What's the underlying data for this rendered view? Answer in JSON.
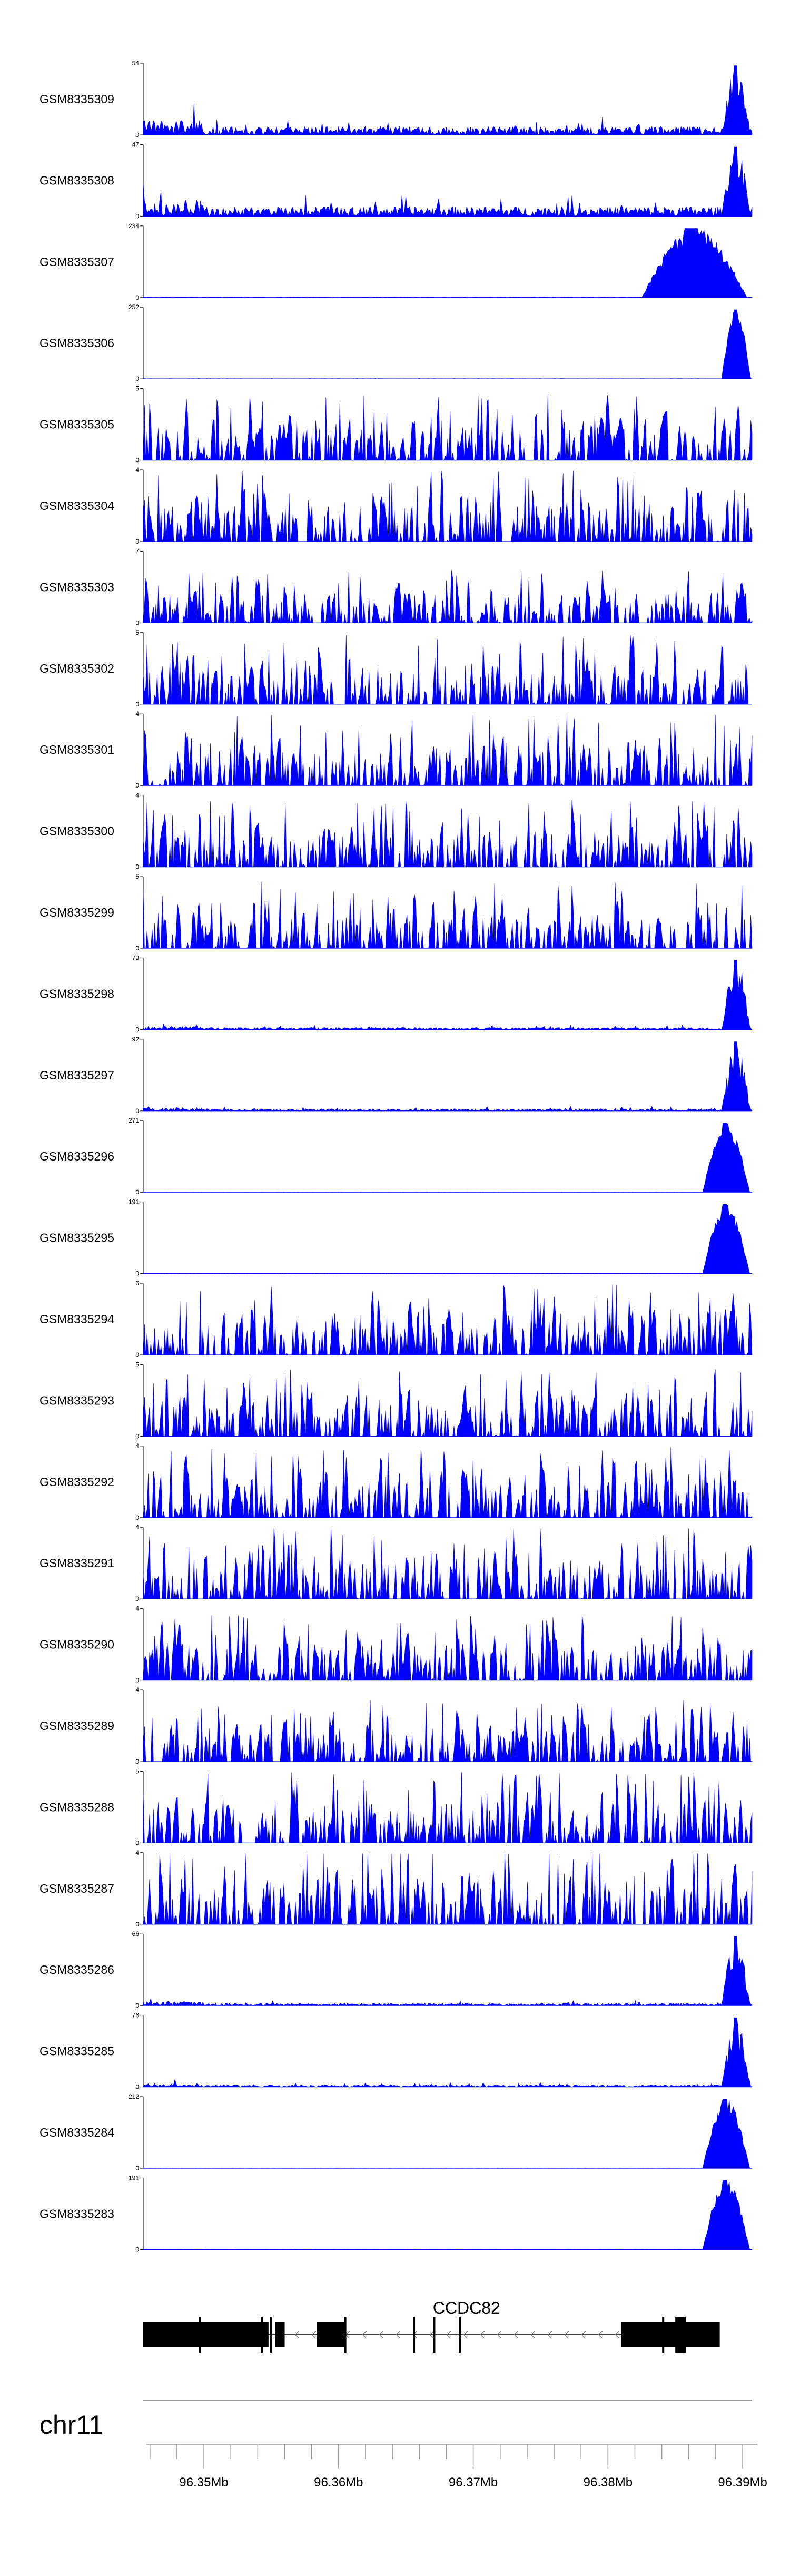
{
  "chart_data": {
    "type": "area",
    "chromosome": "chr11",
    "xlim": [
      96.3455,
      96.3907
    ],
    "color": "#0000ff",
    "tracks": [
      {
        "name": "GSM8335309",
        "ymax": "54",
        "ymin": "0",
        "max": 54,
        "profile": "noise",
        "level": 0.12,
        "peak": [
          0.95,
          1.0,
          0.5
        ],
        "seed": 1
      },
      {
        "name": "GSM8335308",
        "ymax": "47",
        "ymin": "0",
        "max": 47,
        "profile": "noise",
        "level": 0.14,
        "peak": [
          0.95,
          1.0,
          0.55
        ],
        "seed": 2
      },
      {
        "name": "GSM8335307",
        "ymax": "234",
        "ymin": "0",
        "max": 234,
        "profile": "flat",
        "level": 0.005,
        "peak": [
          0.82,
          1.0,
          0.75
        ],
        "seed": 3
      },
      {
        "name": "GSM8335306",
        "ymax": "252",
        "ymin": "0",
        "max": 252,
        "profile": "flat",
        "level": 0.005,
        "peak": [
          0.95,
          1.0,
          0.8
        ],
        "seed": 4
      },
      {
        "name": "GSM8335305",
        "ymax": "5",
        "ymin": "0",
        "max": 5,
        "profile": "spiky",
        "level": 0.55,
        "peak": null,
        "seed": 5
      },
      {
        "name": "GSM8335304",
        "ymax": "4",
        "ymin": "0",
        "max": 4,
        "profile": "spiky",
        "level": 0.6,
        "peak": null,
        "seed": 6
      },
      {
        "name": "GSM8335303",
        "ymax": "7",
        "ymin": "0",
        "max": 7,
        "profile": "spiky",
        "level": 0.42,
        "peak": null,
        "seed": 7
      },
      {
        "name": "GSM8335302",
        "ymax": "5",
        "ymin": "0",
        "max": 5,
        "profile": "spiky",
        "level": 0.58,
        "peak": null,
        "seed": 8
      },
      {
        "name": "GSM8335301",
        "ymax": "4",
        "ymin": "0",
        "max": 4,
        "profile": "spiky",
        "level": 0.6,
        "peak": null,
        "seed": 9
      },
      {
        "name": "GSM8335300",
        "ymax": "4",
        "ymin": "0",
        "max": 4,
        "profile": "spiky",
        "level": 0.55,
        "peak": null,
        "seed": 10
      },
      {
        "name": "GSM8335299",
        "ymax": "5",
        "ymin": "0",
        "max": 5,
        "profile": "spiky",
        "level": 0.55,
        "peak": null,
        "seed": 11
      },
      {
        "name": "GSM8335298",
        "ymax": "79",
        "ymin": "0",
        "max": 79,
        "profile": "noise",
        "level": 0.03,
        "peak": [
          0.95,
          1.0,
          0.45
        ],
        "seed": 12
      },
      {
        "name": "GSM8335297",
        "ymax": "92",
        "ymin": "0",
        "max": 92,
        "profile": "noise",
        "level": 0.03,
        "peak": [
          0.95,
          1.0,
          0.45
        ],
        "seed": 13
      },
      {
        "name": "GSM8335296",
        "ymax": "271",
        "ymin": "0",
        "max": 271,
        "profile": "flat",
        "level": 0.004,
        "peak": [
          0.92,
          1.0,
          0.8
        ],
        "seed": 14
      },
      {
        "name": "GSM8335295",
        "ymax": "191",
        "ymin": "0",
        "max": 191,
        "profile": "flat",
        "level": 0.004,
        "peak": [
          0.92,
          1.0,
          0.8
        ],
        "seed": 15
      },
      {
        "name": "GSM8335294",
        "ymax": "6",
        "ymin": "0",
        "max": 6,
        "profile": "spiky",
        "level": 0.6,
        "peak": null,
        "seed": 16
      },
      {
        "name": "GSM8335293",
        "ymax": "5",
        "ymin": "0",
        "max": 5,
        "profile": "spiky",
        "level": 0.55,
        "peak": null,
        "seed": 17
      },
      {
        "name": "GSM8335292",
        "ymax": "4",
        "ymin": "0",
        "max": 4,
        "profile": "spiky",
        "level": 0.6,
        "peak": null,
        "seed": 18
      },
      {
        "name": "GSM8335291",
        "ymax": "4",
        "ymin": "0",
        "max": 4,
        "profile": "spiky",
        "level": 0.62,
        "peak": null,
        "seed": 19
      },
      {
        "name": "GSM8335290",
        "ymax": "4",
        "ymin": "0",
        "max": 4,
        "profile": "spiky",
        "level": 0.55,
        "peak": null,
        "seed": 20
      },
      {
        "name": "GSM8335289",
        "ymax": "4",
        "ymin": "0",
        "max": 4,
        "profile": "spiky",
        "level": 0.5,
        "peak": null,
        "seed": 21
      },
      {
        "name": "GSM8335288",
        "ymax": "5",
        "ymin": "0",
        "max": 5,
        "profile": "spiky",
        "level": 0.6,
        "peak": null,
        "seed": 22
      },
      {
        "name": "GSM8335287",
        "ymax": "4",
        "ymin": "0",
        "max": 4,
        "profile": "spiky",
        "level": 0.68,
        "peak": null,
        "seed": 23
      },
      {
        "name": "GSM8335286",
        "ymax": "66",
        "ymin": "0",
        "max": 66,
        "profile": "noise",
        "level": 0.035,
        "peak": [
          0.95,
          1.0,
          0.45
        ],
        "seed": 24
      },
      {
        "name": "GSM8335285",
        "ymax": "76",
        "ymin": "0",
        "max": 76,
        "profile": "noise",
        "level": 0.03,
        "peak": [
          0.95,
          1.0,
          0.45
        ],
        "seed": 25
      },
      {
        "name": "GSM8335284",
        "ymax": "212",
        "ymin": "0",
        "max": 212,
        "profile": "flat",
        "level": 0.004,
        "peak": [
          0.92,
          1.0,
          0.8
        ],
        "seed": 26
      },
      {
        "name": "GSM8335283",
        "ymax": "191",
        "ymin": "0",
        "max": 191,
        "profile": "flat",
        "level": 0.004,
        "peak": [
          0.92,
          1.0,
          0.8
        ],
        "seed": 27
      }
    ],
    "gene": {
      "name": "CCDC82",
      "strand": "-",
      "exons": [
        [
          96.3455,
          96.3548
        ],
        [
          96.3553,
          96.356
        ],
        [
          96.3584,
          96.3604
        ],
        [
          96.381,
          96.3883
        ]
      ],
      "markers": [
        96.3497,
        96.3543,
        96.355,
        96.3605,
        96.3656,
        96.3671,
        96.369,
        96.3841,
        96.3851,
        96.3857
      ]
    },
    "xaxis": {
      "ticks": [
        96.35,
        96.36,
        96.37,
        96.38,
        96.39
      ],
      "tick_labels": [
        "96.35Mb",
        "96.36Mb",
        "96.37Mb",
        "96.38Mb",
        "96.39Mb"
      ],
      "minor_step": 0.002
    }
  }
}
